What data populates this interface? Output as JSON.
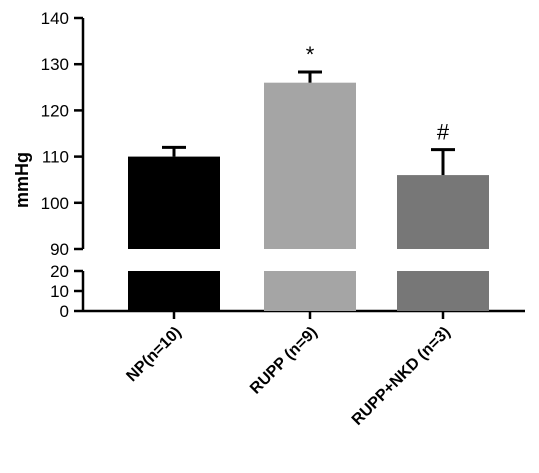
{
  "chart_data": {
    "type": "bar",
    "ylabel": "mmHg",
    "categories": [
      "NP(n=10)",
      "RUPP (n=9)",
      "RUPP+NKD (n=3)"
    ],
    "values": [
      110,
      126,
      106
    ],
    "errors": [
      2,
      2.3,
      5.5
    ],
    "colors": [
      "#000000",
      "#a5a5a5",
      "#777777"
    ],
    "annotations": [
      "",
      "*",
      "#"
    ],
    "axis_break": true,
    "ylim_upper": [
      90,
      140
    ],
    "ylim_lower": [
      0,
      20
    ],
    "yticks_upper": [
      90,
      100,
      110,
      120,
      130,
      140
    ],
    "yticks_lower": [
      0,
      10,
      20
    ],
    "grid": false
  }
}
